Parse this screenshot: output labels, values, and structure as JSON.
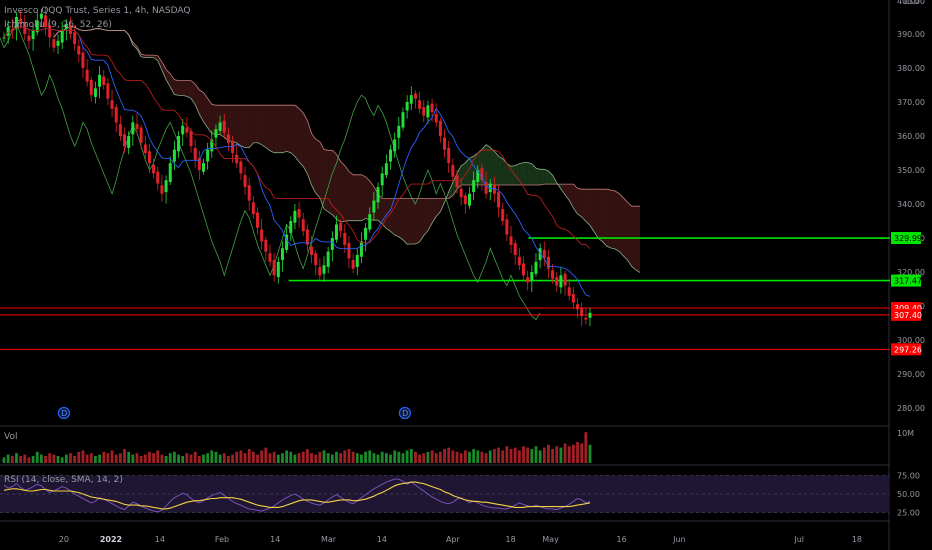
{
  "chart_data": {
    "type": "candlestick",
    "symbol_line": "Invesco QQQ Trust, Series 1, 4h, NASDAQ",
    "indicator_label": "Ichimoku (9, 26, 52, 26)",
    "currency": "USD",
    "price_axis": {
      "ylim": [
        275,
        400
      ],
      "ticks": [
        400,
        390,
        380,
        370,
        360,
        350,
        340,
        330,
        320,
        310,
        300,
        290,
        280
      ],
      "tick_labels": [
        "400.00",
        "390.00",
        "380.00",
        "370.00",
        "360.00",
        "350.00",
        "340.00",
        "330.00",
        "320.00",
        "310.00",
        "300.00",
        "290.00",
        "280.00"
      ]
    },
    "price_tags": [
      {
        "value": 329.99,
        "label": "329.99",
        "color": "#00e600"
      },
      {
        "value": 317.47,
        "label": "317.47",
        "color": "#00e600"
      },
      {
        "value": 309.4,
        "label": "309.40",
        "color": "#ff0000"
      },
      {
        "value": 307.4,
        "label": "307.40",
        "color": "#ff0000"
      },
      {
        "value": 297.26,
        "label": "297.26",
        "color": "#ff0000"
      }
    ],
    "horizontal_lines": [
      {
        "value": 329.99,
        "from_time": 0.595,
        "color": "#00e600"
      },
      {
        "value": 317.47,
        "from_time": 0.325,
        "color": "#00e600"
      },
      {
        "value": 309.4,
        "from_time": 0,
        "color": "#ff0000"
      },
      {
        "value": 307.4,
        "from_time": 0,
        "color": "#ff0000"
      },
      {
        "value": 297.26,
        "from_time": 0,
        "color": "#ff0000"
      }
    ],
    "close_series": [
      389,
      392,
      391,
      395,
      393,
      390,
      388,
      391,
      394,
      396,
      392,
      389,
      386,
      388,
      391,
      393,
      390,
      387,
      384,
      380,
      376,
      372,
      374,
      378,
      375,
      371,
      368,
      364,
      360,
      357,
      360,
      364,
      362,
      358,
      355,
      352,
      349,
      346,
      343,
      347,
      352,
      356,
      360,
      363,
      361,
      357,
      353,
      350,
      352,
      356,
      359,
      362,
      364,
      361,
      358,
      355,
      352,
      349,
      345,
      341,
      337,
      333,
      329,
      326,
      323,
      319,
      323,
      327,
      331,
      335,
      338,
      336,
      332,
      328,
      325,
      322,
      319,
      322,
      326,
      330,
      334,
      332,
      328,
      324,
      321,
      325,
      329,
      333,
      337,
      341,
      345,
      349,
      352,
      356,
      359,
      363,
      367,
      370,
      372,
      371,
      368,
      366,
      369,
      367,
      364,
      360,
      356,
      352,
      348,
      345,
      342,
      340,
      343,
      347,
      350,
      347,
      343,
      346,
      343,
      339,
      335,
      331,
      328,
      325,
      322,
      319,
      317,
      320,
      323,
      327,
      324,
      321,
      318,
      316,
      319,
      316,
      313,
      311,
      309,
      307,
      306,
      308
    ],
    "rsi_series": [
      62,
      58,
      60,
      64,
      59,
      55,
      57,
      60,
      63,
      61,
      56,
      52,
      54,
      57,
      60,
      58,
      54,
      50,
      47,
      44,
      41,
      38,
      40,
      45,
      43,
      40,
      37,
      34,
      31,
      29,
      34,
      39,
      37,
      34,
      31,
      29,
      27,
      26,
      28,
      34,
      40,
      45,
      48,
      51,
      49,
      44,
      40,
      38,
      41,
      45,
      48,
      50,
      52,
      48,
      44,
      40,
      37,
      35,
      32,
      30,
      29,
      28,
      27,
      29,
      31,
      34,
      38,
      42,
      45,
      48,
      50,
      47,
      43,
      40,
      38,
      36,
      35,
      38,
      42,
      46,
      49,
      46,
      42,
      39,
      37,
      41,
      45,
      49,
      53,
      57,
      60,
      63,
      66,
      68,
      70,
      70,
      67,
      63,
      66,
      62,
      58,
      54,
      50,
      46,
      43,
      40,
      38,
      37,
      39,
      43,
      45,
      42,
      38,
      41,
      38,
      35,
      33,
      32,
      31,
      31,
      30,
      30,
      32,
      35,
      38,
      36,
      34,
      33,
      35,
      33,
      31,
      30,
      30,
      29,
      31,
      33,
      36,
      40,
      44,
      42,
      38,
      40
    ],
    "rsi_sma_series": [
      55,
      56,
      57,
      57,
      56,
      55,
      54,
      54,
      55,
      56,
      56,
      55,
      54,
      54,
      54,
      54,
      54,
      53,
      52,
      50,
      48,
      46,
      45,
      44,
      43,
      42,
      41,
      40,
      38,
      36,
      35,
      35,
      35,
      34,
      34,
      33,
      32,
      31,
      30,
      30,
      31,
      33,
      35,
      37,
      39,
      40,
      41,
      41,
      42,
      43,
      44,
      44,
      45,
      45,
      45,
      45,
      44,
      43,
      41,
      39,
      37,
      35,
      34,
      33,
      32,
      32,
      32,
      33,
      35,
      37,
      39,
      41,
      42,
      42,
      42,
      41,
      40,
      39,
      39,
      40,
      41,
      42,
      42,
      42,
      41,
      41,
      42,
      43,
      45,
      47,
      50,
      52,
      55,
      58,
      61,
      63,
      64,
      65,
      66,
      66,
      65,
      64,
      62,
      60,
      58,
      56,
      53,
      51,
      48,
      46,
      44,
      42,
      41,
      40,
      40,
      39,
      39,
      38,
      37,
      36,
      35,
      34,
      33,
      32,
      32,
      32,
      33,
      33,
      33,
      33,
      33,
      33,
      33,
      33,
      33,
      33,
      33,
      34,
      35,
      36,
      37,
      38
    ],
    "volume_series": [
      4,
      6,
      5,
      7,
      5,
      6,
      4,
      5,
      8,
      6,
      5,
      7,
      6,
      5,
      4,
      6,
      7,
      5,
      8,
      9,
      6,
      7,
      5,
      6,
      8,
      7,
      9,
      6,
      7,
      10,
      8,
      6,
      7,
      5,
      6,
      8,
      7,
      9,
      6,
      5,
      7,
      8,
      6,
      5,
      7,
      6,
      8,
      5,
      6,
      7,
      9,
      8,
      6,
      7,
      5,
      6,
      8,
      9,
      7,
      10,
      8,
      6,
      9,
      11,
      7,
      8,
      6,
      7,
      9,
      8,
      6,
      7,
      8,
      10,
      7,
      6,
      8,
      9,
      7,
      6,
      8,
      7,
      9,
      10,
      8,
      7,
      6,
      8,
      9,
      7,
      6,
      8,
      7,
      6,
      9,
      8,
      7,
      9,
      10,
      8,
      6,
      7,
      8,
      9,
      7,
      8,
      10,
      11,
      9,
      8,
      7,
      9,
      8,
      10,
      9,
      8,
      7,
      9,
      10,
      11,
      9,
      12,
      10,
      11,
      9,
      12,
      11,
      10,
      12,
      9,
      11,
      13,
      10,
      12,
      11,
      14,
      12,
      13,
      15,
      14,
      22,
      13
    ],
    "time_axis": {
      "labels": [
        "20",
        "2022",
        "14",
        "Feb",
        "14",
        "Mar",
        "14",
        "Apr",
        "18",
        "May",
        "16",
        "Jun",
        "Jul",
        "18"
      ],
      "positions": [
        0.072,
        0.125,
        0.18,
        0.25,
        0.31,
        0.37,
        0.43,
        0.51,
        0.575,
        0.62,
        0.7,
        0.765,
        0.9,
        0.965
      ]
    },
    "volume_label": "Vol",
    "volume_axis_label": "10M",
    "rsi_label": "RSI (14, close, SMA, 14, 2)",
    "rsi_axis": {
      "ylim": [
        15,
        85
      ],
      "ticks": [
        75,
        50,
        25
      ],
      "tick_labels": [
        "75.00",
        "50.00",
        "25.00"
      ]
    },
    "event_markers": [
      {
        "label": "D",
        "time": 0.072
      },
      {
        "label": "D",
        "time": 0.456
      }
    ],
    "colors": {
      "up": "#22e03a",
      "down": "#e0222a",
      "tenkan": "#2962ff",
      "kijun": "#b71c1c",
      "lagging": "#43a047",
      "span_a": "#a5d6a7",
      "span_b": "#ef9a9a",
      "cloud_bull": "#1b3a1b",
      "cloud_bear": "#3a1414",
      "rsi": "#7e57c2",
      "rsi_sma": "#f5d142",
      "rsi_band": "#1f1633"
    }
  }
}
